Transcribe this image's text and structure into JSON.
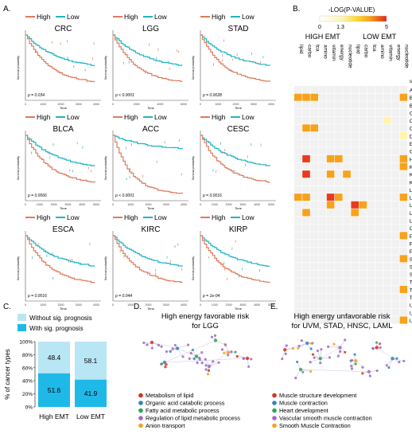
{
  "panel_labels": {
    "a": "A.",
    "b": "B.",
    "c": "C.",
    "d": "D.",
    "e": "E."
  },
  "colors": {
    "high": "#e07b5c",
    "low": "#1fb5c4",
    "sig": "#1fb9e8",
    "nonsig": "#b9e6f4"
  },
  "km": {
    "legend_high": "High",
    "legend_low": "Low",
    "ylabel": "Survival probability",
    "xlabel": "Time",
    "plots": [
      {
        "name": "CRC",
        "p": "p = 0.034",
        "ticks": [
          "0",
          "1000",
          "2000",
          "3000",
          "4000"
        ]
      },
      {
        "name": "LGG",
        "p": "p < 0.0001",
        "ticks": [
          "0",
          "2000",
          "4000",
          "6000"
        ]
      },
      {
        "name": "STAD",
        "p": "p = 0.0028",
        "ticks": [
          "0",
          "1000",
          "2000",
          "3000",
          "4000"
        ]
      },
      {
        "name": "BLCA",
        "p": "p = 0.0066",
        "ticks": [
          "0",
          "1000",
          "2000",
          "3000",
          "4000",
          "5000"
        ]
      },
      {
        "name": "ACC",
        "p": "p < 0.0001",
        "ticks": [
          "0",
          "1000",
          "2000",
          "3000",
          "4000"
        ]
      },
      {
        "name": "CESC",
        "p": "p = 0.0016",
        "ticks": [
          "0",
          "1000",
          "2000",
          "3000",
          "4000",
          "5000"
        ]
      },
      {
        "name": "ESCA",
        "p": "p = 0.0016",
        "ticks": [
          "0",
          "1000",
          "2000",
          "3000",
          "4000"
        ]
      },
      {
        "name": "KIRC",
        "p": "p = 0.044",
        "ticks": [
          "0",
          "1000",
          "2000",
          "3000",
          "4000"
        ]
      },
      {
        "name": "KIRP",
        "p": "p = 1e-04",
        "ticks": [
          "0",
          "1000",
          "2000",
          "3000",
          "4000",
          "5000"
        ]
      }
    ]
  },
  "chart_data": [
    {
      "type": "line",
      "title": "Kaplan-Meier survival curves",
      "xlabel": "Time",
      "ylabel": "Survival probability",
      "ylim": [
        0,
        1
      ],
      "series": [
        {
          "name": "High"
        },
        {
          "name": "Low"
        }
      ]
    },
    {
      "type": "heatmap",
      "title": "-LOG(P-VALUE)",
      "scale": {
        "min": "0",
        "mid": "1.3",
        "max": "5"
      },
      "group_labels": [
        "HIGH EMT",
        "LOW EMT"
      ],
      "columns": [
        "lipid",
        "carbo",
        "tca",
        "amino",
        "vitamin",
        "energy",
        "nucleotide",
        "lipid",
        "carbo",
        "tca",
        "amino",
        "vitamin",
        "energy",
        "nucleotide"
      ],
      "row_header": "s",
      "rows": [
        "ACC",
        "BLCA",
        "BRCA",
        "CESC",
        "CHOL",
        "CRC",
        "DLBC",
        "ESCA",
        "GBM",
        "HNSC",
        "KICH",
        "KIRC",
        "KIRP",
        "LAML",
        "LGG",
        "LIHC",
        "LUAD",
        "LUSC",
        "OV",
        "PAAD",
        "PCPG",
        "PRAD",
        "SARC",
        "SKCM",
        "STAD",
        "TGCT",
        "THCA",
        "THYM",
        "UCEC",
        "UCS",
        "UVM"
      ],
      "values": [
        [
          0,
          0,
          0,
          0,
          0,
          0,
          0,
          0,
          0,
          0,
          0,
          0,
          0,
          0
        ],
        [
          3,
          3,
          3,
          0,
          0,
          0,
          0,
          0,
          0,
          0,
          0,
          0,
          0,
          3
        ],
        [
          0,
          0,
          0,
          0,
          0,
          0,
          0,
          0,
          0,
          0,
          0,
          0,
          0,
          0
        ],
        [
          0,
          0,
          0,
          0,
          0,
          0,
          0,
          0,
          0,
          0,
          0,
          0,
          0,
          0
        ],
        [
          0,
          0,
          0,
          0,
          0,
          0,
          0,
          0,
          0,
          0,
          0,
          1,
          0,
          0
        ],
        [
          0,
          3,
          3,
          0,
          0,
          0,
          0,
          0,
          0,
          0,
          0,
          0,
          0,
          0
        ],
        [
          0,
          0,
          0,
          0,
          0,
          0,
          0,
          0,
          0,
          0,
          0,
          0,
          0,
          1
        ],
        [
          0,
          0,
          0,
          0,
          0,
          0,
          0,
          0,
          0,
          0,
          0,
          0,
          0,
          0
        ],
        [
          0,
          0,
          0,
          0,
          0,
          0,
          0,
          0,
          0,
          0,
          0,
          0,
          0,
          0
        ],
        [
          0,
          4,
          0,
          0,
          3,
          3,
          0,
          0,
          0,
          0,
          0,
          0,
          0,
          3
        ],
        [
          0,
          0,
          0,
          0,
          0,
          0,
          0,
          0,
          0,
          0,
          0,
          0,
          0,
          3
        ],
        [
          0,
          4,
          0,
          0,
          3,
          0,
          3,
          0,
          0,
          0,
          0,
          0,
          0,
          0
        ],
        [
          0,
          0,
          0,
          0,
          0,
          0,
          0,
          0,
          0,
          0,
          0,
          0,
          0,
          0
        ],
        [
          0,
          0,
          0,
          0,
          0,
          0,
          0,
          0,
          0,
          0,
          0,
          0,
          0,
          0
        ],
        [
          3,
          3,
          0,
          0,
          4,
          3,
          0,
          0,
          0,
          0,
          0,
          0,
          0,
          3
        ],
        [
          0,
          0,
          0,
          0,
          3,
          0,
          0,
          4,
          3,
          0,
          0,
          0,
          0,
          0
        ],
        [
          0,
          3,
          0,
          0,
          0,
          0,
          0,
          3,
          0,
          0,
          0,
          0,
          0,
          0
        ],
        [
          0,
          0,
          0,
          0,
          0,
          0,
          0,
          0,
          0,
          0,
          0,
          0,
          0,
          0
        ],
        [
          0,
          0,
          0,
          0,
          0,
          0,
          0,
          0,
          0,
          0,
          0,
          0,
          0,
          0
        ],
        [
          0,
          0,
          0,
          0,
          0,
          0,
          0,
          0,
          0,
          0,
          0,
          0,
          0,
          3
        ],
        [
          0,
          0,
          0,
          0,
          0,
          0,
          0,
          0,
          0,
          0,
          0,
          0,
          0,
          0
        ],
        [
          0,
          0,
          0,
          0,
          0,
          0,
          0,
          0,
          0,
          0,
          0,
          0,
          0,
          0
        ],
        [
          0,
          0,
          0,
          0,
          0,
          0,
          0,
          0,
          0,
          0,
          0,
          0,
          0,
          3
        ],
        [
          0,
          0,
          0,
          0,
          0,
          0,
          0,
          0,
          0,
          0,
          0,
          0,
          0,
          0
        ],
        [
          0,
          0,
          0,
          0,
          0,
          0,
          0,
          0,
          0,
          0,
          0,
          0,
          0,
          0
        ],
        [
          0,
          0,
          0,
          0,
          0,
          0,
          0,
          0,
          0,
          0,
          0,
          0,
          0,
          0
        ],
        [
          0,
          0,
          0,
          0,
          0,
          0,
          0,
          0,
          0,
          0,
          0,
          0,
          0,
          3
        ],
        [
          0,
          0,
          0,
          0,
          0,
          0,
          0,
          0,
          0,
          0,
          0,
          0,
          0,
          0
        ],
        [
          0,
          0,
          0,
          0,
          0,
          0,
          0,
          0,
          0,
          0,
          0,
          0,
          0,
          0
        ],
        [
          0,
          0,
          0,
          0,
          0,
          0,
          0,
          0,
          0,
          0,
          0,
          0,
          0,
          0
        ],
        [
          0,
          0,
          0,
          0,
          0,
          0,
          0,
          0,
          0,
          0,
          0,
          0,
          0,
          3
        ]
      ]
    },
    {
      "type": "bar",
      "stacked": true,
      "categories": [
        "High EMT",
        "Low EMT"
      ],
      "ylabel": "% of cancer types",
      "ylim": [
        0,
        100
      ],
      "yticks": [
        "0%",
        "20%",
        "40%",
        "60%",
        "80%",
        "100%"
      ],
      "series": [
        {
          "name": "With sig. prognosis",
          "values": [
            51.6,
            41.9
          ]
        },
        {
          "name": "Without sig. prognosis",
          "values": [
            48.4,
            58.1
          ]
        }
      ]
    }
  ],
  "panel_d": {
    "title_line1": "High energy favorable risk",
    "title_line2": "for LGG",
    "legend": [
      {
        "label": "Metabolism of lipid",
        "color": "#d7301f"
      },
      {
        "label": "Organic acid catabolic process",
        "color": "#3182bd"
      },
      {
        "label": "Fatty acid metabolic process",
        "color": "#31a354"
      },
      {
        "label": "Regulation of lipid metabolic process",
        "color": "#9e6bbf"
      },
      {
        "label": "Anion transport",
        "color": "#f5a21b"
      }
    ]
  },
  "panel_e": {
    "title_line1": "High energy unfavorable risk",
    "title_line2": "for UVM, STAD, HNSC, LAML",
    "legend": [
      {
        "label": "Muscle structure development",
        "color": "#d7301f"
      },
      {
        "label": "Muscle contraction",
        "color": "#3182bd"
      },
      {
        "label": "Heart development",
        "color": "#31a354"
      },
      {
        "label": "Vascular smooth muscle contraction",
        "color": "#9e6bbf"
      },
      {
        "label": "Smooth Muscle Contraction",
        "color": "#f5a21b"
      }
    ]
  }
}
